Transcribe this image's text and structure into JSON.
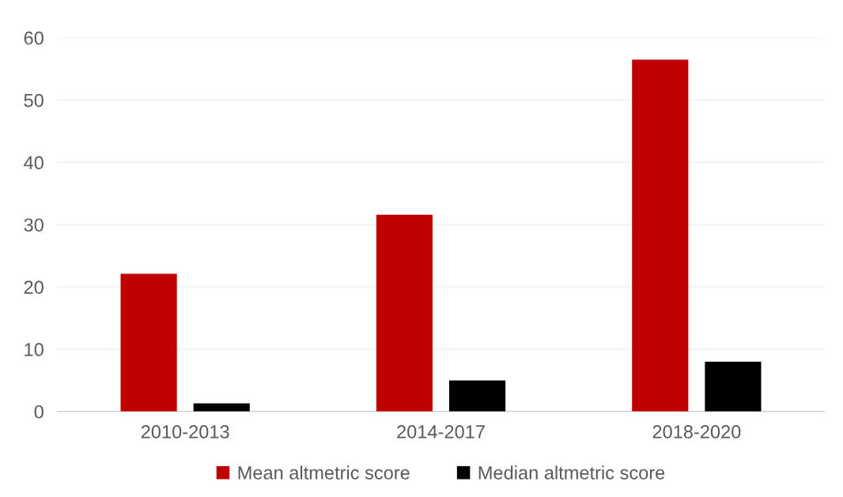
{
  "chart_data": {
    "type": "bar",
    "categories": [
      "2010-2013",
      "2014-2017",
      "2018-2020"
    ],
    "series": [
      {
        "name": "Mean altmetric score",
        "color": "#c00000",
        "values": [
          22.1,
          31.6,
          56.5
        ]
      },
      {
        "name": "Median altmetric score",
        "color": "#000000",
        "values": [
          1.3,
          5.0,
          8.0
        ]
      }
    ],
    "ylim": [
      0,
      60
    ],
    "yticks": [
      0,
      10,
      20,
      30,
      40,
      50,
      60
    ],
    "grid": "y",
    "legend": "bottom"
  }
}
